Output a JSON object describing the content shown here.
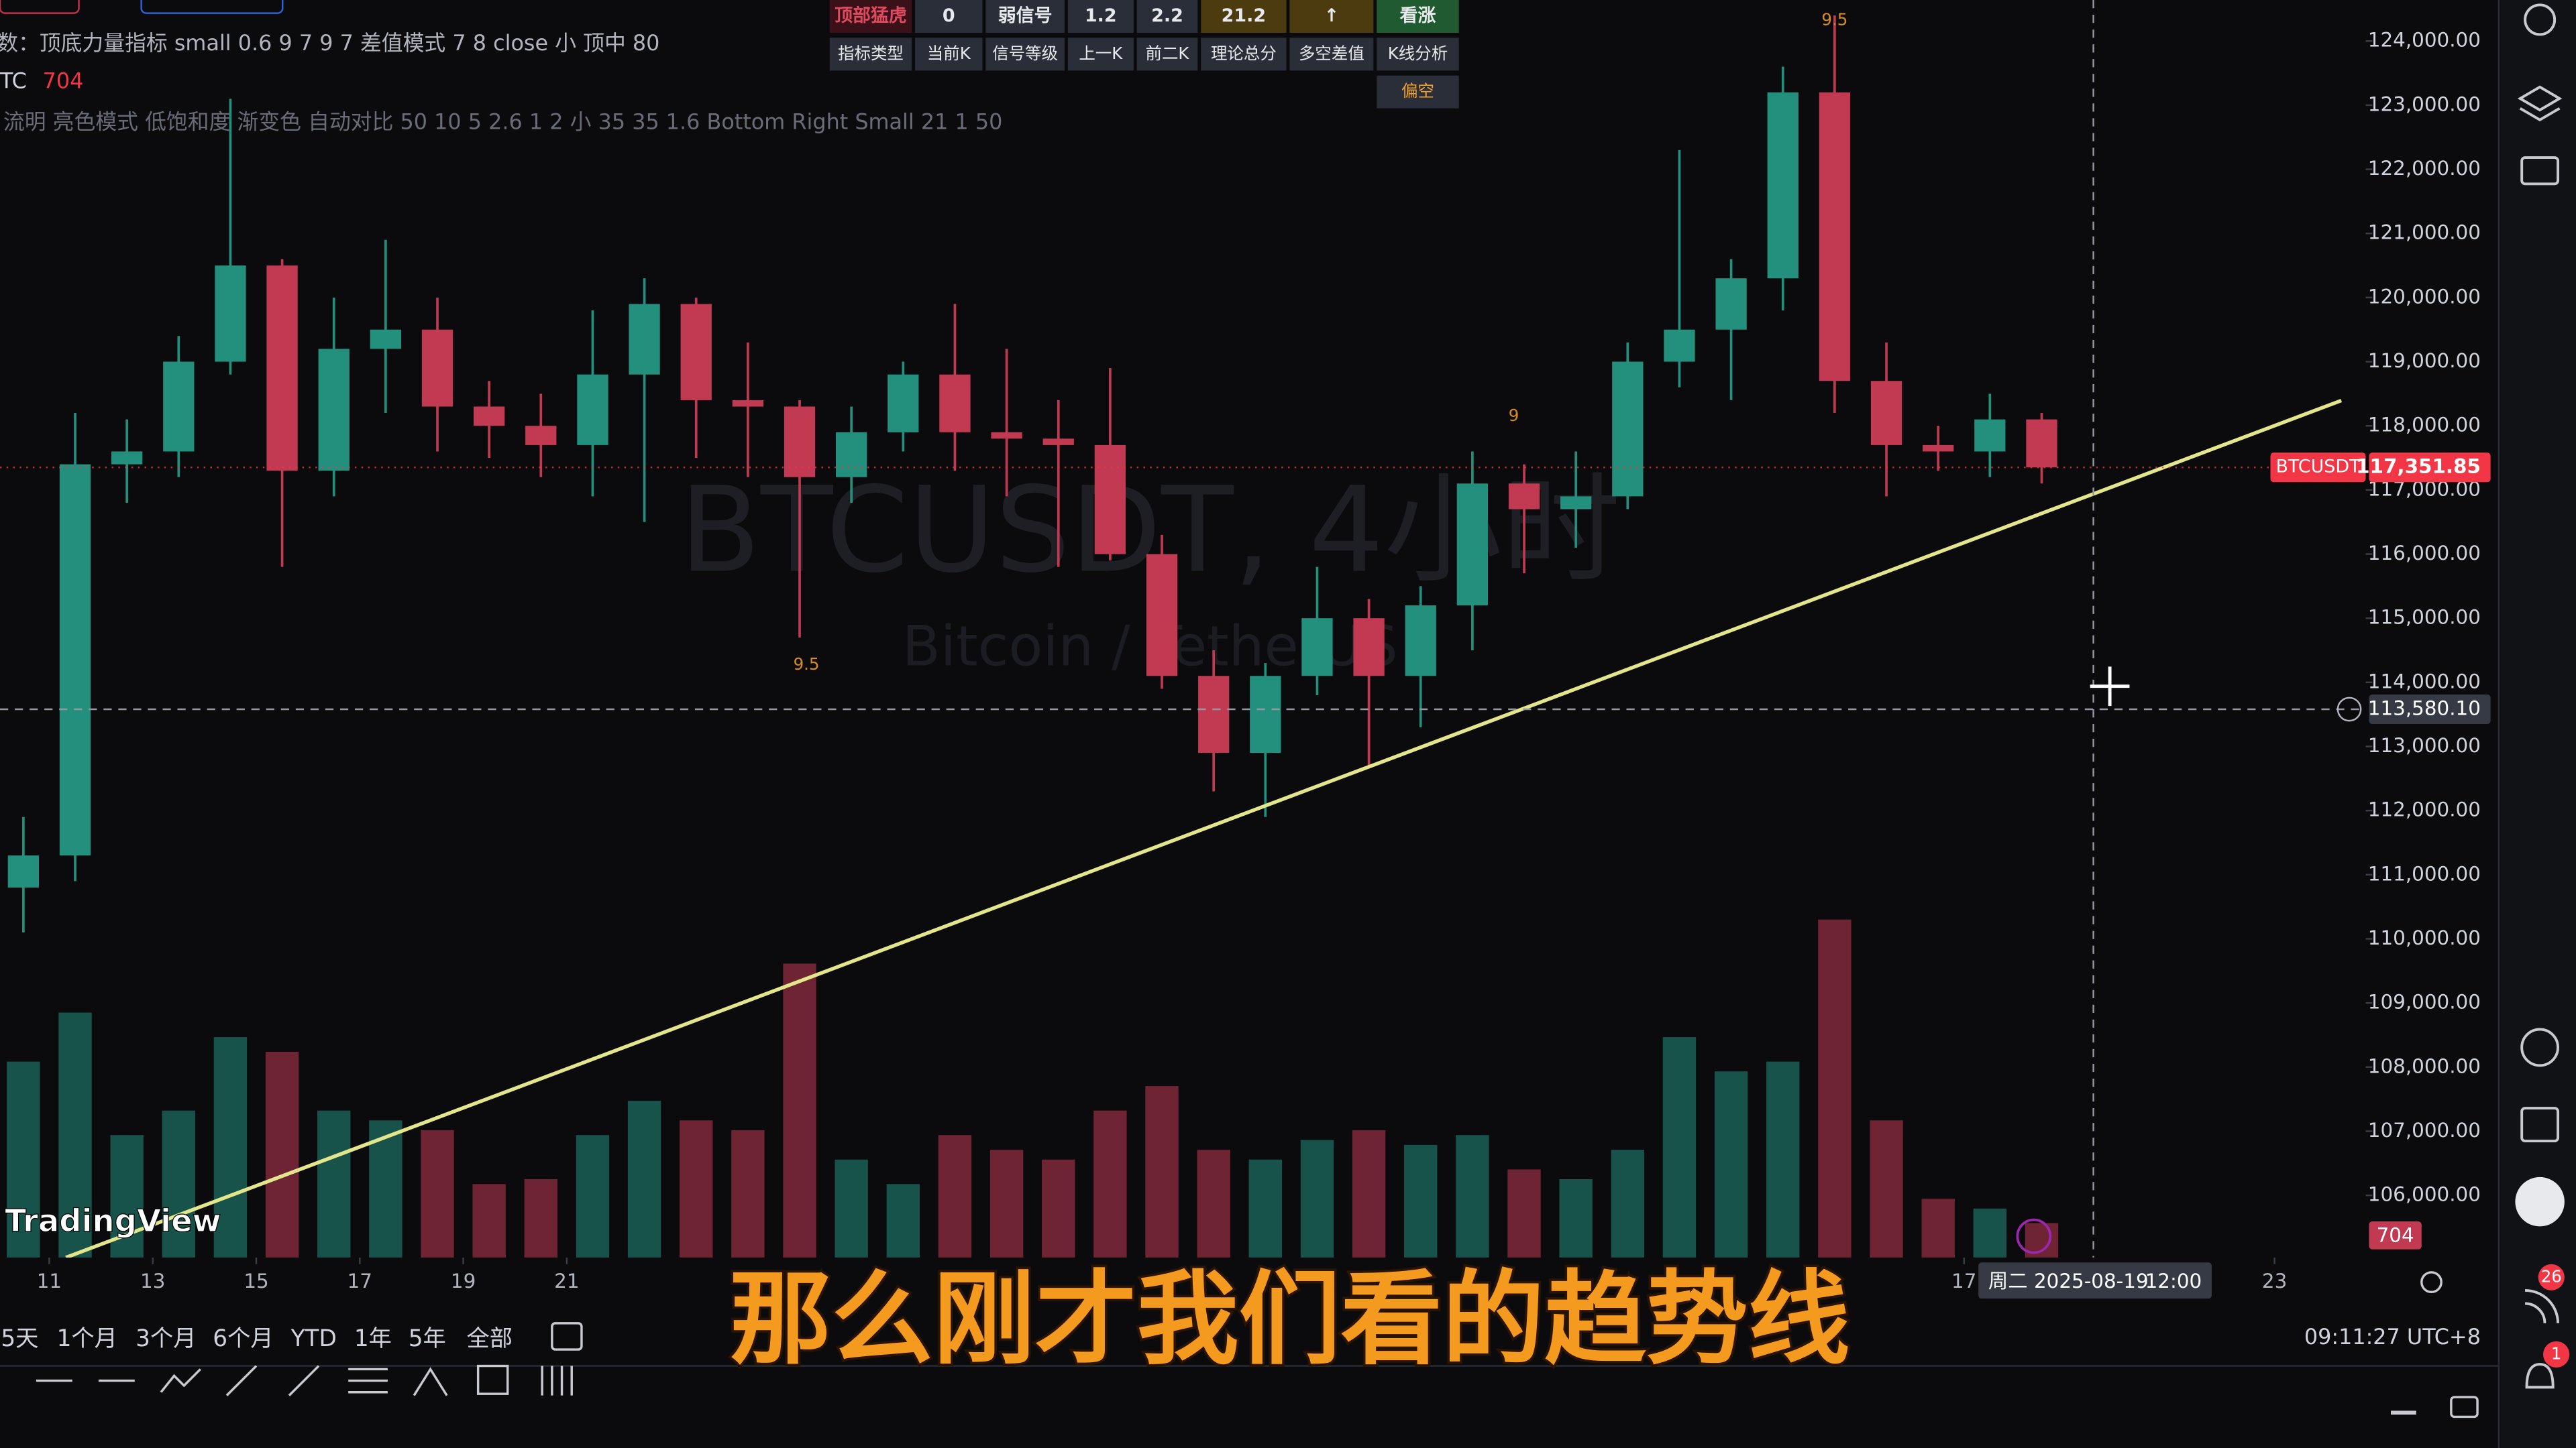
{
  "header": {
    "indicator_line": "数：顶底力量指标 small 0.6 9 7 9 7 差值模式 7 8 close 小 顶中 80",
    "symbol_short": "TC",
    "settings_line": "流明 亮色模式 低饱和度 渐变色 自动对比 50 10 5 2.6 1 2 小 35 35 1.6 Bottom Right Small 21 1 50"
  },
  "signal_table": {
    "value_row": [
      "顶部猛虎",
      "0",
      "弱信号",
      "1.2",
      "2.2",
      "21.2",
      "↑",
      "看涨"
    ],
    "header_row": [
      "指标类型",
      "当前K",
      "信号等级",
      "上一K",
      "前二K",
      "理论总分",
      "多空差值",
      "K线分析"
    ],
    "analysis": "偏空"
  },
  "watermark": {
    "symbol": "BTCUSDT, 4小时",
    "name": "Bitcoin / TetherUS"
  },
  "logo": "TradingView",
  "ranges": [
    "5天",
    "1个月",
    "3个月",
    "6个月",
    "YTD",
    "1年",
    "5年",
    "全部"
  ],
  "clock": "09:11:27 UTC+8",
  "subtitle": "那么刚才我们看的趋势线",
  "badges": [
    "26",
    "1"
  ],
  "chart_data": {
    "type": "candlestick",
    "x": [
      -1,
      0,
      1,
      2,
      3,
      4,
      5,
      6,
      7,
      8,
      9,
      10,
      11,
      12,
      13,
      14,
      15,
      16,
      17,
      18,
      19,
      20,
      21,
      22,
      23,
      24,
      25,
      26,
      27,
      28,
      29,
      30,
      31,
      32,
      33,
      34,
      35,
      36,
      37,
      38
    ],
    "open": [
      110800,
      111300,
      117400,
      117600,
      119000,
      120500,
      117300,
      119200,
      119500,
      118300,
      118000,
      117700,
      118800,
      119900,
      118400,
      118300,
      117200,
      117900,
      118800,
      117900,
      117800,
      117700,
      116000,
      114100,
      112900,
      114100,
      115000,
      114100,
      115200,
      117100,
      116700,
      116900,
      119000,
      119500,
      120300,
      123200,
      118700,
      117700,
      117600,
      118100
    ],
    "high": [
      111900,
      118200,
      118100,
      119400,
      123100,
      120600,
      120000,
      120900,
      120000,
      118700,
      118500,
      119800,
      120300,
      120000,
      119300,
      118400,
      118300,
      119000,
      119900,
      119200,
      118400,
      118900,
      116300,
      114500,
      114300,
      115800,
      115300,
      115500,
      117600,
      117400,
      117600,
      119300,
      122300,
      120600,
      123600,
      124400,
      119300,
      118000,
      118500,
      118200
    ],
    "low": [
      110100,
      110900,
      116800,
      117200,
      118800,
      115800,
      116900,
      118200,
      117600,
      117500,
      117200,
      116900,
      116500,
      117500,
      117200,
      114700,
      116800,
      117600,
      117300,
      116900,
      115800,
      115900,
      113900,
      112300,
      111900,
      113800,
      112700,
      113300,
      114500,
      115700,
      116100,
      116700,
      118600,
      118400,
      119800,
      118200,
      116900,
      117300,
      117200,
      117100
    ],
    "close": [
      111300,
      117400,
      117600,
      119000,
      120500,
      117300,
      119200,
      119500,
      118300,
      118000,
      117700,
      118800,
      119900,
      118400,
      118300,
      117200,
      117900,
      118800,
      117900,
      117800,
      117700,
      116000,
      114100,
      112900,
      114100,
      115000,
      114100,
      115200,
      117100,
      116700,
      116900,
      119000,
      119500,
      120300,
      123200,
      118700,
      117700,
      117600,
      118100,
      117351.85
    ],
    "volume": [
      4000,
      5000,
      2500,
      3000,
      4500,
      4200,
      3000,
      2800,
      2600,
      1500,
      1600,
      2500,
      3200,
      2800,
      2600,
      6000,
      2000,
      1500,
      2500,
      2200,
      2000,
      3000,
      3500,
      2200,
      2000,
      2400,
      2600,
      2300,
      2500,
      1800,
      1600,
      2200,
      4500,
      3800,
      4000,
      6900,
      2800,
      1200,
      1000,
      704
    ],
    "up_color": "#22907c",
    "down_color": "#c23a52",
    "xlim": [
      -0.952,
      44.762
    ],
    "xticks": [
      {
        "value": 0,
        "label": "11"
      },
      {
        "value": 2,
        "label": "13"
      },
      {
        "value": 4,
        "label": "15"
      },
      {
        "value": 6,
        "label": "17"
      },
      {
        "value": 8,
        "label": "19"
      },
      {
        "value": 10,
        "label": "21"
      },
      {
        "value": 37,
        "label": "17"
      },
      {
        "value": 43,
        "label": "23"
      }
    ],
    "ylim": [
      105030,
      124640
    ],
    "yticks": [
      {
        "value": 106000,
        "label": "106,000.00"
      },
      {
        "value": 107000,
        "label": "107,000.00"
      },
      {
        "value": 108000,
        "label": "108,000.00"
      },
      {
        "value": 109000,
        "label": "109,000.00"
      },
      {
        "value": 110000,
        "label": "110,000.00"
      },
      {
        "value": 111000,
        "label": "111,000.00"
      },
      {
        "value": 112000,
        "label": "112,000.00"
      },
      {
        "value": 113000,
        "label": "113,000.00"
      },
      {
        "value": 114000,
        "label": "114,000.00"
      },
      {
        "value": 115000,
        "label": "115,000.00"
      },
      {
        "value": 116000,
        "label": "116,000.00"
      },
      {
        "value": 117000,
        "label": "117,000.00"
      },
      {
        "value": 118000,
        "label": "118,000.00"
      },
      {
        "value": 119000,
        "label": "119,000.00"
      },
      {
        "value": 120000,
        "label": "120,000.00"
      },
      {
        "value": 121000,
        "label": "121,000.00"
      },
      {
        "value": 122000,
        "label": "122,000.00"
      },
      {
        "value": 123000,
        "label": "123,000.00"
      },
      {
        "value": 124000,
        "label": "124,000.00"
      }
    ],
    "vlim": [
      0,
      25000
    ],
    "last_price": {
      "name": "BTCUSDT",
      "value": 117351.85,
      "label": "117,351.85",
      "color": "#f23645"
    },
    "crosshair": {
      "x": 39.5,
      "y": {
        "value": 113580.1,
        "label": "113,580.10"
      },
      "x_label": "周二 2025-08-19",
      "time_label": "12:00"
    },
    "trendline": {
      "x": [
        0.32,
        44.29
      ],
      "y": [
        105030,
        118394
      ],
      "color": "#e3e68a"
    },
    "annotations": [
      {
        "text": "9.5",
        "x": 14.63,
        "y": 114272
      },
      {
        "text": "9",
        "x": 28.3,
        "y": 118150
      },
      {
        "text": "9.5",
        "x": 34.5,
        "y": 124320
      }
    ]
  }
}
